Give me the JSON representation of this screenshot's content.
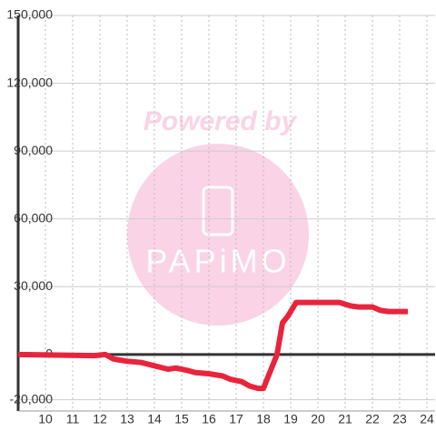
{
  "chart_data": {
    "type": "line",
    "watermark": {
      "top": "Powered by",
      "logo": "PAPiMO"
    },
    "x": [
      9,
      11.8,
      12.2,
      12.5,
      13,
      13.5,
      14,
      14.5,
      14.8,
      15.2,
      15.5,
      16,
      16.5,
      16.8,
      17.2,
      17.5,
      17.8,
      18,
      18.5,
      18.7,
      18.9,
      19.2,
      20,
      20.8,
      21.2,
      21.5,
      22,
      22.3,
      22.6,
      23.3
    ],
    "series": [
      {
        "color": "#e8243c",
        "values": [
          0,
          -500,
          0,
          -2000,
          -3000,
          -3500,
          -5000,
          -6500,
          -6000,
          -7000,
          -8000,
          -8500,
          -9500,
          -11000,
          -12000,
          -14000,
          -15000,
          -15000,
          0,
          14000,
          17000,
          23000,
          23000,
          23000,
          21500,
          21000,
          21000,
          19500,
          19000,
          19000
        ]
      }
    ],
    "xlim": [
      9,
      24.3
    ],
    "xticks": [
      10,
      11,
      12,
      13,
      14,
      15,
      16,
      17,
      18,
      19,
      20,
      21,
      22,
      23,
      24
    ],
    "ylim": [
      -25000,
      150000
    ],
    "yticks": [
      {
        "value": -20000,
        "label": "-20,000"
      },
      0,
      {
        "value": 30000,
        "label": "30,000"
      },
      {
        "value": 60000,
        "label": "60,000"
      },
      {
        "value": 90000,
        "label": "90,000"
      },
      {
        "value": 120000,
        "label": "120,000"
      },
      {
        "value": 150000,
        "label": "150,000"
      }
    ],
    "grid": true
  }
}
